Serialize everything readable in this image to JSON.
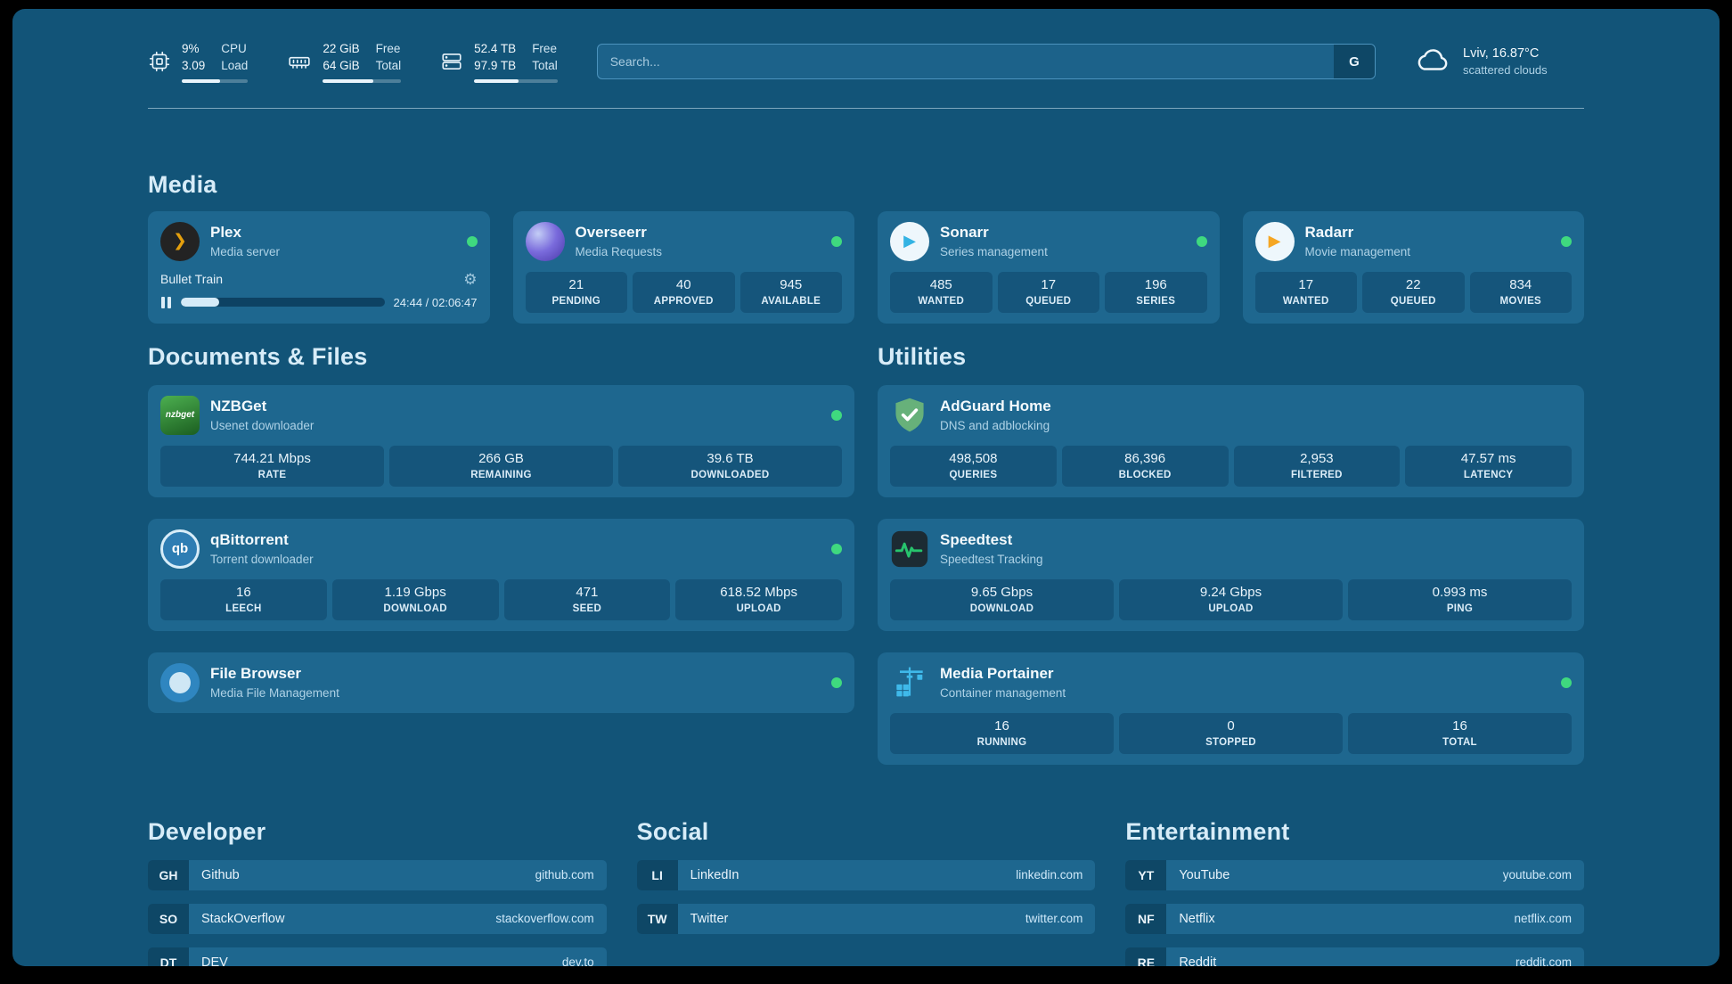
{
  "topbar": {
    "cpu": {
      "value_top": "9%",
      "value_bottom": "3.09",
      "label_top": "CPU",
      "label_bottom": "Load",
      "progress": 58
    },
    "ram": {
      "value_top": "22 GiB",
      "value_bottom": "64 GiB",
      "label_top": "Free",
      "label_bottom": "Total",
      "progress": 64
    },
    "disk": {
      "value_top": "52.4 TB",
      "value_bottom": "97.9 TB",
      "label_top": "Free",
      "label_bottom": "Total",
      "progress": 53
    },
    "search_placeholder": "Search...",
    "search_engine": "G",
    "weather_location": "Lviv, 16.87°C",
    "weather_condition": "scattered clouds"
  },
  "sections": {
    "media": "Media",
    "documents": "Documents & Files",
    "utilities": "Utilities"
  },
  "apps": {
    "plex": {
      "name": "Plex",
      "subtitle": "Media server",
      "now_playing": "Bullet Train",
      "time": "24:44 / 02:06:47",
      "progress": 19
    },
    "overseerr": {
      "name": "Overseerr",
      "subtitle": "Media Requests",
      "stats": [
        {
          "value": "21",
          "label": "PENDING"
        },
        {
          "value": "40",
          "label": "APPROVED"
        },
        {
          "value": "945",
          "label": "AVAILABLE"
        }
      ]
    },
    "sonarr": {
      "name": "Sonarr",
      "subtitle": "Series management",
      "stats": [
        {
          "value": "485",
          "label": "WANTED"
        },
        {
          "value": "17",
          "label": "QUEUED"
        },
        {
          "value": "196",
          "label": "SERIES"
        }
      ]
    },
    "radarr": {
      "name": "Radarr",
      "subtitle": "Movie management",
      "stats": [
        {
          "value": "17",
          "label": "WANTED"
        },
        {
          "value": "22",
          "label": "QUEUED"
        },
        {
          "value": "834",
          "label": "MOVIES"
        }
      ]
    },
    "nzbget": {
      "name": "NZBGet",
      "subtitle": "Usenet downloader",
      "stats": [
        {
          "value": "744.21 Mbps",
          "label": "RATE"
        },
        {
          "value": "266 GB",
          "label": "REMAINING"
        },
        {
          "value": "39.6 TB",
          "label": "DOWNLOADED"
        }
      ]
    },
    "adguard": {
      "name": "AdGuard Home",
      "subtitle": "DNS and adblocking",
      "stats": [
        {
          "value": "498,508",
          "label": "QUERIES"
        },
        {
          "value": "86,396",
          "label": "BLOCKED"
        },
        {
          "value": "2,953",
          "label": "FILTERED"
        },
        {
          "value": "47.57 ms",
          "label": "LATENCY"
        }
      ]
    },
    "qbittorrent": {
      "name": "qBittorrent",
      "subtitle": "Torrent downloader",
      "stats": [
        {
          "value": "16",
          "label": "LEECH"
        },
        {
          "value": "1.19 Gbps",
          "label": "DOWNLOAD"
        },
        {
          "value": "471",
          "label": "SEED"
        },
        {
          "value": "618.52 Mbps",
          "label": "UPLOAD"
        }
      ]
    },
    "speedtest": {
      "name": "Speedtest",
      "subtitle": "Speedtest Tracking",
      "stats": [
        {
          "value": "9.65 Gbps",
          "label": "DOWNLOAD"
        },
        {
          "value": "9.24 Gbps",
          "label": "UPLOAD"
        },
        {
          "value": "0.993 ms",
          "label": "PING"
        }
      ]
    },
    "filebrowser": {
      "name": "File Browser",
      "subtitle": "Media File Management"
    },
    "portainer": {
      "name": "Media Portainer",
      "subtitle": "Container management",
      "stats": [
        {
          "value": "16",
          "label": "RUNNING"
        },
        {
          "value": "0",
          "label": "STOPPED"
        },
        {
          "value": "16",
          "label": "TOTAL"
        }
      ]
    }
  },
  "bookmarks": {
    "developer": {
      "title": "Developer",
      "items": [
        {
          "abbr": "GH",
          "label": "Github",
          "url": "github.com"
        },
        {
          "abbr": "SO",
          "label": "StackOverflow",
          "url": "stackoverflow.com"
        },
        {
          "abbr": "DT",
          "label": "DEV",
          "url": "dev.to"
        }
      ]
    },
    "social": {
      "title": "Social",
      "items": [
        {
          "abbr": "LI",
          "label": "LinkedIn",
          "url": "linkedin.com"
        },
        {
          "abbr": "TW",
          "label": "Twitter",
          "url": "twitter.com"
        }
      ]
    },
    "entertainment": {
      "title": "Entertainment",
      "items": [
        {
          "abbr": "YT",
          "label": "YouTube",
          "url": "youtube.com"
        },
        {
          "abbr": "NF",
          "label": "Netflix",
          "url": "netflix.com"
        },
        {
          "abbr": "RE",
          "label": "Reddit",
          "url": "reddit.com"
        }
      ]
    }
  },
  "icons": {
    "plex_glyph": "❯",
    "sonarr_glyph": "▶",
    "radarr_glyph": "▶",
    "qbittorrent_glyph": "qb",
    "nzbget_glyph": "nzbget",
    "gear_glyph": "⚙"
  },
  "colors": {
    "status_green": "#3fd97f",
    "plex_amber": "#e5a00d",
    "sonarr_blue": "#33b3e3",
    "radarr_amber": "#f5a623",
    "adguard_green": "#67b17a",
    "speedtest_green": "#27c46d",
    "portainer_blue": "#3fb9ea",
    "page_background": "#125478"
  }
}
